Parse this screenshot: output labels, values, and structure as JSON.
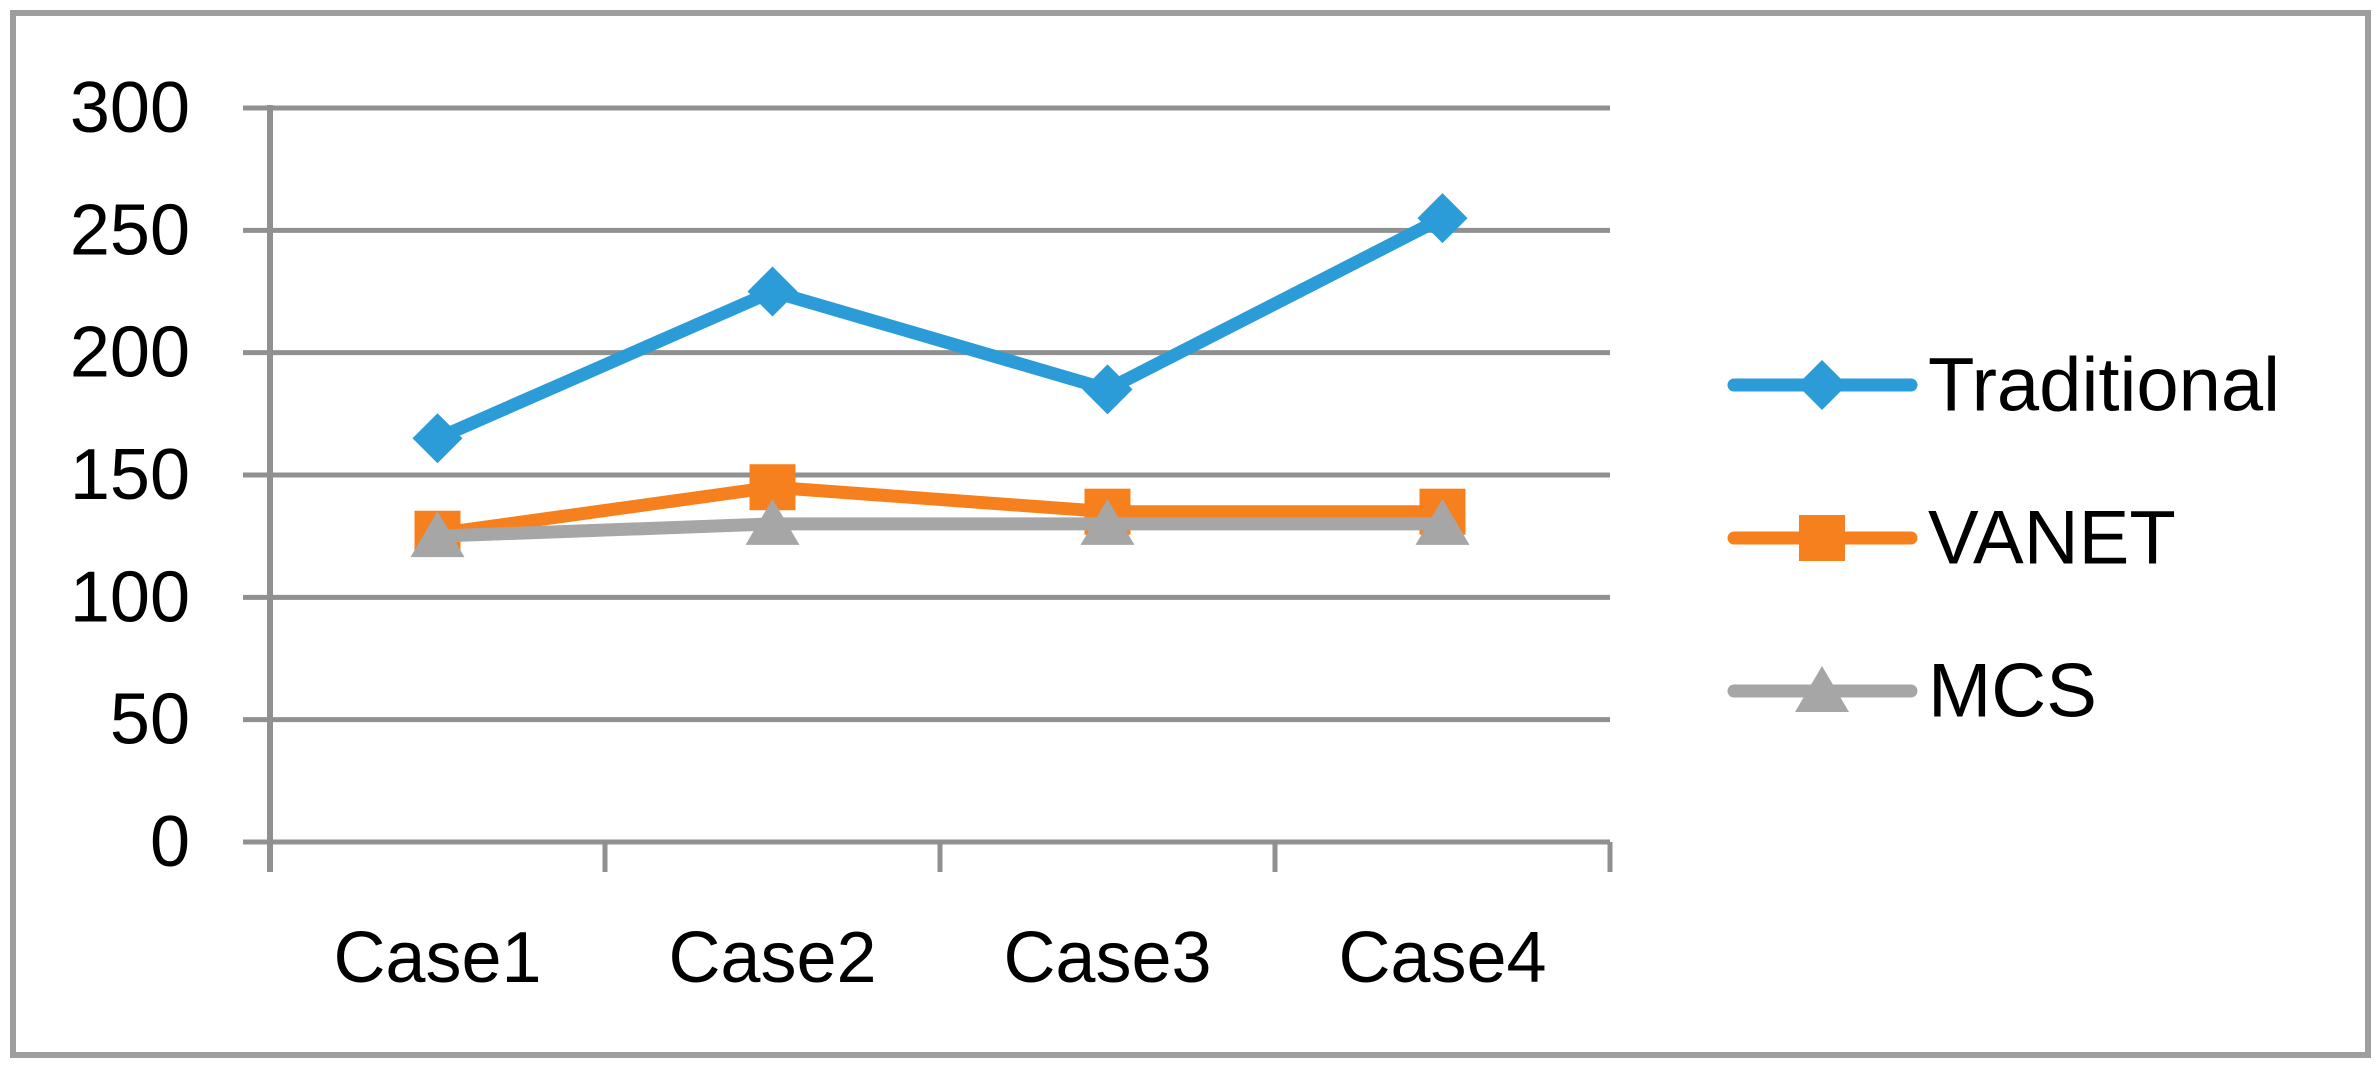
{
  "chart_data": {
    "type": "line",
    "title": "",
    "xlabel": "",
    "ylabel": "",
    "categories": [
      "Case1",
      "Case2",
      "Case3",
      "Case4"
    ],
    "series": [
      {
        "name": "Traditional",
        "values": [
          165,
          225,
          185,
          255
        ],
        "color": "#2B9CD8",
        "marker": "diamond"
      },
      {
        "name": "VANET",
        "values": [
          126,
          145,
          135,
          135
        ],
        "color": "#F6801E",
        "marker": "square"
      },
      {
        "name": "MCS",
        "values": [
          125,
          130,
          130,
          130
        ],
        "color": "#A6A6A6",
        "marker": "triangle"
      }
    ],
    "ylim": [
      0,
      300
    ],
    "yticks": [
      300,
      250,
      200,
      150,
      100,
      50,
      0
    ],
    "grid": true,
    "legend_position": "right"
  },
  "colors": {
    "background": "#FFFFFF",
    "grid_line": "#909090",
    "axis_line": "#909090",
    "outer_border": "#9E9E9E",
    "text": "#000000"
  }
}
